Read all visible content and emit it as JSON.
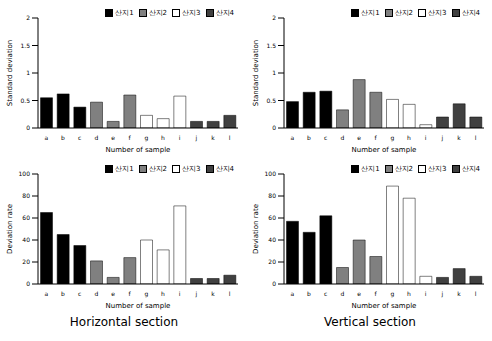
{
  "chart_data": [
    {
      "type": "bar",
      "y_label": "Standard deviation",
      "x_label": "Number of sample",
      "stacked": true,
      "legend": "top right",
      "categories": [
        "a",
        "b",
        "c",
        "d",
        "e",
        "f",
        "g",
        "h",
        "i",
        "j",
        "k",
        "l"
      ],
      "ylim": [
        0,
        2
      ],
      "yticks": [
        0,
        0.5,
        1,
        1.5,
        2
      ],
      "series": [
        {
          "name": "산지1",
          "color": "#000000",
          "values": [
            0.55,
            0.62,
            0.38,
            null,
            null,
            null,
            null,
            null,
            null,
            null,
            null,
            null
          ]
        },
        {
          "name": "산지2",
          "color": "#808080",
          "values": [
            null,
            null,
            null,
            0.47,
            0.12,
            0.6,
            null,
            null,
            null,
            null,
            null,
            null
          ]
        },
        {
          "name": "산지3",
          "color": "#ffffff",
          "values": [
            null,
            null,
            null,
            null,
            null,
            null,
            0.23,
            0.17,
            0.58,
            null,
            null,
            null
          ]
        },
        {
          "name": "산지4",
          "color": "#404040",
          "values": [
            null,
            null,
            null,
            null,
            null,
            null,
            null,
            null,
            null,
            0.12,
            0.12,
            0.23
          ]
        }
      ]
    },
    {
      "type": "bar",
      "y_label": "Standard deviation",
      "x_label": "Number of sample",
      "stacked": true,
      "legend": "top right",
      "categories": [
        "a",
        "b",
        "c",
        "d",
        "e",
        "f",
        "g",
        "h",
        "i",
        "j",
        "k",
        "l"
      ],
      "ylim": [
        0,
        2
      ],
      "yticks": [
        0,
        0.5,
        1,
        1.5,
        2
      ],
      "series": [
        {
          "name": "산지1",
          "color": "#000000",
          "values": [
            0.48,
            0.65,
            0.67,
            null,
            null,
            null,
            null,
            null,
            null,
            null,
            null,
            null
          ]
        },
        {
          "name": "산지2",
          "color": "#808080",
          "values": [
            null,
            null,
            null,
            0.33,
            0.88,
            0.65,
            null,
            null,
            null,
            null,
            null,
            null
          ]
        },
        {
          "name": "산지3",
          "color": "#ffffff",
          "values": [
            null,
            null,
            null,
            null,
            null,
            null,
            0.52,
            0.43,
            0.06,
            null,
            null,
            null
          ]
        },
        {
          "name": "산지4",
          "color": "#404040",
          "values": [
            null,
            null,
            null,
            null,
            null,
            null,
            null,
            null,
            null,
            0.2,
            0.44,
            0.2
          ]
        }
      ]
    },
    {
      "type": "bar",
      "y_label": "Deviation rate",
      "x_label": "Number of sample",
      "stacked": true,
      "legend": "top right",
      "categories": [
        "a",
        "b",
        "c",
        "d",
        "e",
        "f",
        "g",
        "h",
        "i",
        "j",
        "k",
        "l"
      ],
      "ylim": [
        0,
        100
      ],
      "yticks": [
        0,
        20,
        40,
        60,
        80,
        100
      ],
      "series": [
        {
          "name": "산지1",
          "color": "#000000",
          "values": [
            65,
            45,
            35,
            null,
            null,
            null,
            null,
            null,
            null,
            null,
            null,
            null
          ]
        },
        {
          "name": "산지2",
          "color": "#808080",
          "values": [
            null,
            null,
            null,
            21,
            6,
            24,
            null,
            null,
            null,
            null,
            null,
            null
          ]
        },
        {
          "name": "산지3",
          "color": "#ffffff",
          "values": [
            null,
            null,
            null,
            null,
            null,
            null,
            40,
            31,
            71,
            null,
            null,
            null
          ]
        },
        {
          "name": "산지4",
          "color": "#404040",
          "values": [
            null,
            null,
            null,
            null,
            null,
            null,
            null,
            null,
            null,
            5,
            5,
            8
          ]
        }
      ]
    },
    {
      "type": "bar",
      "y_label": "Deviation rate",
      "x_label": "Number of sample",
      "stacked": true,
      "legend": "top right",
      "categories": [
        "a",
        "b",
        "c",
        "d",
        "e",
        "f",
        "g",
        "h",
        "i",
        "j",
        "k",
        "l"
      ],
      "ylim": [
        0,
        100
      ],
      "yticks": [
        0,
        20,
        40,
        60,
        80,
        100
      ],
      "series": [
        {
          "name": "산지1",
          "color": "#000000",
          "values": [
            57,
            47,
            62,
            null,
            null,
            null,
            null,
            null,
            null,
            null,
            null,
            null
          ]
        },
        {
          "name": "산지2",
          "color": "#808080",
          "values": [
            null,
            null,
            null,
            15,
            40,
            25,
            null,
            null,
            null,
            null,
            null,
            null
          ]
        },
        {
          "name": "산지3",
          "color": "#ffffff",
          "values": [
            null,
            null,
            null,
            null,
            null,
            null,
            89,
            78,
            7,
            null,
            null,
            null
          ]
        },
        {
          "name": "산지4",
          "color": "#404040",
          "values": [
            null,
            null,
            null,
            null,
            null,
            null,
            null,
            null,
            null,
            6,
            14,
            7
          ]
        }
      ]
    }
  ],
  "captions": [
    "Horizontal section",
    "Vertical section"
  ]
}
